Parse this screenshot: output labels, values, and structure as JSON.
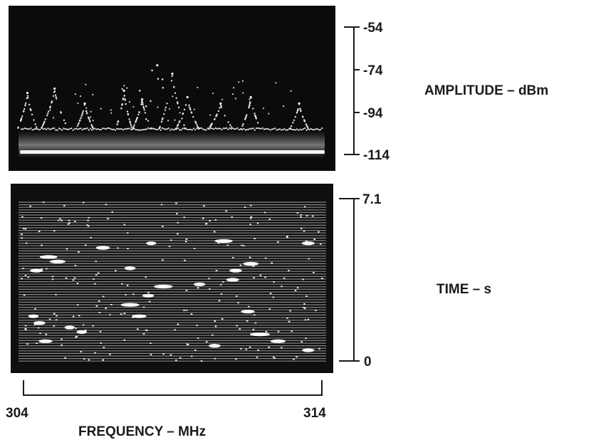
{
  "chart_data": [
    {
      "type": "scatter",
      "panel": "spectrum-display",
      "ylabel": "AMPLITUDE – dBm",
      "ylim": [
        -114,
        -54
      ],
      "y_ticks": [
        "-54",
        "-74",
        "-94",
        "-114"
      ],
      "xlim": [
        304,
        314
      ],
      "noise_floor_dbm": -94,
      "grid": false,
      "peaks": [
        {
          "x": 304.2,
          "y": -85
        },
        {
          "x": 305.1,
          "y": -83
        },
        {
          "x": 306.1,
          "y": -90
        },
        {
          "x": 307.4,
          "y": -84
        },
        {
          "x": 308.0,
          "y": -88
        },
        {
          "x": 309.5,
          "y": -87
        },
        {
          "x": 310.6,
          "y": -90
        },
        {
          "x": 311.6,
          "y": -87
        },
        {
          "x": 313.2,
          "y": -90
        },
        {
          "x": 308.5,
          "y": -72
        },
        {
          "x": 309.0,
          "y": -76
        }
      ]
    },
    {
      "type": "scatter",
      "panel": "waterfall-display",
      "ylabel": "TIME – s",
      "ylim": [
        0,
        7.1
      ],
      "y_ticks": [
        "7.1",
        "0"
      ],
      "xlabel": "FREQUENCY – MHz",
      "xlim": [
        304,
        314
      ],
      "x_ticks": [
        "304",
        "314"
      ],
      "grid": false,
      "signals": [
        {
          "x": 306.7,
          "y": 5.0
        },
        {
          "x": 308.3,
          "y": 5.2
        },
        {
          "x": 310.7,
          "y": 5.3
        },
        {
          "x": 313.5,
          "y": 5.2
        },
        {
          "x": 304.9,
          "y": 4.6
        },
        {
          "x": 305.2,
          "y": 4.4
        },
        {
          "x": 307.6,
          "y": 4.1
        },
        {
          "x": 311.1,
          "y": 4.0
        },
        {
          "x": 311.6,
          "y": 4.3
        },
        {
          "x": 304.5,
          "y": 4.0
        },
        {
          "x": 308.7,
          "y": 3.3
        },
        {
          "x": 309.9,
          "y": 3.4
        },
        {
          "x": 311.0,
          "y": 3.6
        },
        {
          "x": 308.2,
          "y": 2.9
        },
        {
          "x": 307.6,
          "y": 2.5
        },
        {
          "x": 307.9,
          "y": 2.0
        },
        {
          "x": 311.5,
          "y": 2.2
        },
        {
          "x": 304.4,
          "y": 2.0
        },
        {
          "x": 304.6,
          "y": 1.7
        },
        {
          "x": 305.6,
          "y": 1.5
        },
        {
          "x": 306.0,
          "y": 1.3
        },
        {
          "x": 311.9,
          "y": 1.2
        },
        {
          "x": 312.5,
          "y": 0.9
        },
        {
          "x": 304.8,
          "y": 0.9
        },
        {
          "x": 310.4,
          "y": 0.7
        },
        {
          "x": 313.5,
          "y": 0.5
        }
      ]
    }
  ]
}
